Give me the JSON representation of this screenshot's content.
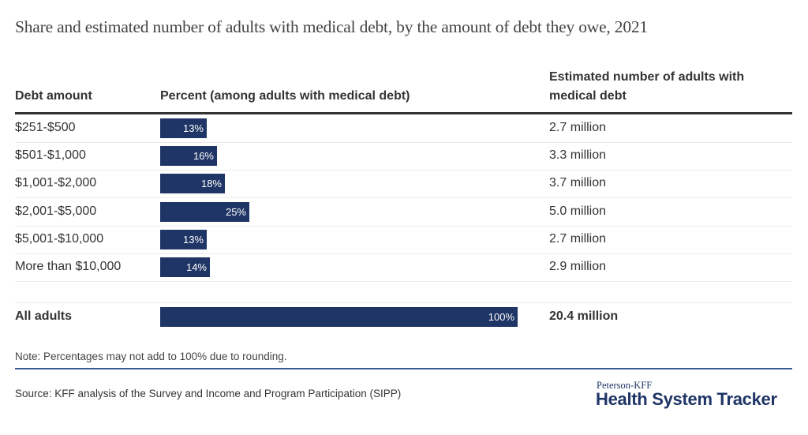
{
  "chart_data": {
    "type": "bar",
    "title": "Share and estimated number of adults with medical debt, by the amount of debt they owe, 2021",
    "columns": {
      "category": "Debt amount",
      "percent": "Percent (among adults with medical debt)",
      "estimate_line1": "Estimated number of adults with",
      "estimate_line2": "medical debt"
    },
    "xlim": [
      0,
      100
    ],
    "bar_color": "#1f3566",
    "rows": [
      {
        "category": "$251-$500",
        "value": 13,
        "label": "13%",
        "estimate": "2.7 million"
      },
      {
        "category": "$501-$1,000",
        "value": 16,
        "label": "16%",
        "estimate": "3.3 million"
      },
      {
        "category": "$1,001-$2,000",
        "value": 18,
        "label": "18%",
        "estimate": "3.7 million"
      },
      {
        "category": "$2,001-$5,000",
        "value": 25,
        "label": "25%",
        "estimate": "5.0 million"
      },
      {
        "category": "$5,001-$10,000",
        "value": 13,
        "label": "13%",
        "estimate": "2.7 million"
      },
      {
        "category": "More than $10,000",
        "value": 14,
        "label": "14%",
        "estimate": "2.9 million"
      }
    ],
    "total": {
      "category": "All adults",
      "value": 100,
      "label": "100%",
      "estimate": "20.4 million"
    }
  },
  "footer": {
    "note": "Note: Percentages may not add to 100% due to rounding.",
    "source": "Source: KFF analysis of the Survey and Income and Program Participation (SIPP)",
    "logo_small": "Peterson-KFF",
    "logo_big": "Health System Tracker"
  }
}
